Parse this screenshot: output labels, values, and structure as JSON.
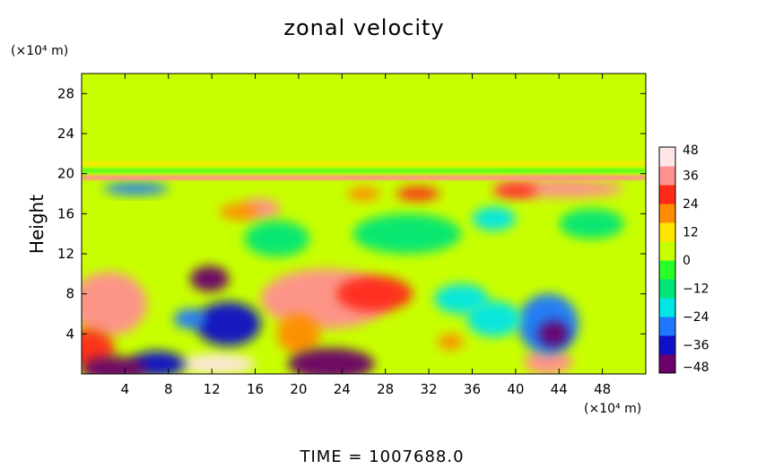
{
  "chart_data": {
    "type": "heatmap",
    "title": "zonal velocity",
    "xlabel": "",
    "ylabel": "Height",
    "x_unit": "(×10⁴ m)",
    "y_unit": "(×10⁴ m)",
    "xlim": [
      0,
      52
    ],
    "ylim": [
      0,
      30
    ],
    "x_ticks": [
      4,
      8,
      12,
      16,
      20,
      24,
      28,
      32,
      36,
      40,
      44,
      48
    ],
    "y_ticks": [
      4,
      8,
      12,
      16,
      20,
      24,
      28
    ],
    "colorbar": {
      "min": -48,
      "max": 48,
      "ticks": [
        48,
        36,
        24,
        12,
        0,
        -12,
        -24,
        -36,
        -48
      ],
      "colors": [
        "#6a006a",
        "#1010c8",
        "#1e78ff",
        "#00e6e6",
        "#00e676",
        "#28ff28",
        "#c8ff00",
        "#ffe600",
        "#ff8c00",
        "#ff2a1a",
        "#ff9090",
        "#ffe6e6"
      ]
    },
    "background_value": 0,
    "features": [
      {
        "x": 2.5,
        "y": 7,
        "w": 3.5,
        "h": 3.2,
        "value": 34
      },
      {
        "x": 0.5,
        "y": 2.5,
        "w": 2.5,
        "h": 2,
        "value": 26
      },
      {
        "x": 22.5,
        "y": 7.5,
        "w": 6,
        "h": 3,
        "value": 38
      },
      {
        "x": 27,
        "y": 8,
        "w": 3.5,
        "h": 1.8,
        "value": 30
      },
      {
        "x": 20,
        "y": 4,
        "w": 2,
        "h": 2,
        "value": 20
      },
      {
        "x": 12.5,
        "y": 1,
        "w": 3.5,
        "h": 1,
        "value": 46
      },
      {
        "x": 43,
        "y": 1.2,
        "w": 2.2,
        "h": 1.3,
        "value": 38
      },
      {
        "x": 16.5,
        "y": 16.5,
        "w": 1.8,
        "h": 1,
        "value": 38
      },
      {
        "x": 14.5,
        "y": 16.2,
        "w": 1.8,
        "h": 0.8,
        "value": 22
      },
      {
        "x": 31,
        "y": 18,
        "w": 2,
        "h": 0.7,
        "value": 24
      },
      {
        "x": 26,
        "y": 18,
        "w": 1.5,
        "h": 0.7,
        "value": 18
      },
      {
        "x": 44,
        "y": 18.5,
        "w": 6,
        "h": 0.9,
        "value": 36
      },
      {
        "x": 40,
        "y": 18.3,
        "w": 2,
        "h": 0.7,
        "value": 28
      },
      {
        "x": 34,
        "y": 3.2,
        "w": 1.2,
        "h": 0.8,
        "value": 22
      },
      {
        "x": 11.8,
        "y": 9.5,
        "w": 1.8,
        "h": 1.3,
        "value": -44
      },
      {
        "x": 13.5,
        "y": 5,
        "w": 3,
        "h": 2.2,
        "value": -36
      },
      {
        "x": 10,
        "y": 5.5,
        "w": 1.5,
        "h": 1,
        "value": -26
      },
      {
        "x": 7,
        "y": 1,
        "w": 2.5,
        "h": 1.3,
        "value": -34
      },
      {
        "x": 3,
        "y": 0.5,
        "w": 3,
        "h": 1.3,
        "value": -46
      },
      {
        "x": 23,
        "y": 1,
        "w": 4,
        "h": 1.6,
        "value": -44
      },
      {
        "x": 43,
        "y": 5,
        "w": 2.8,
        "h": 3,
        "value": -30
      },
      {
        "x": 43.5,
        "y": 4,
        "w": 1.4,
        "h": 1.3,
        "value": -44
      },
      {
        "x": 38,
        "y": 5.5,
        "w": 2.5,
        "h": 1.8,
        "value": -22
      },
      {
        "x": 35,
        "y": 7.5,
        "w": 2.5,
        "h": 1.5,
        "value": -18
      },
      {
        "x": 5,
        "y": 18.5,
        "w": 3,
        "h": 0.6,
        "value": -30
      },
      {
        "x": 38,
        "y": 15.5,
        "w": 2,
        "h": 1.2,
        "value": -18
      },
      {
        "x": 18,
        "y": 13.5,
        "w": 3,
        "h": 1.8,
        "value": -14
      },
      {
        "x": 30,
        "y": 14,
        "w": 5,
        "h": 2,
        "value": -12
      },
      {
        "x": 47,
        "y": 15,
        "w": 3,
        "h": 1.5,
        "value": -14
      }
    ],
    "bands": [
      {
        "y": 19.6,
        "h": 0.45,
        "value": 38
      },
      {
        "y": 20.3,
        "h": 0.3,
        "value": -8
      },
      {
        "y": 21.0,
        "h": 0.35,
        "value": 14
      }
    ]
  },
  "footer": {
    "time_label": "TIME  =  1007688.0"
  }
}
